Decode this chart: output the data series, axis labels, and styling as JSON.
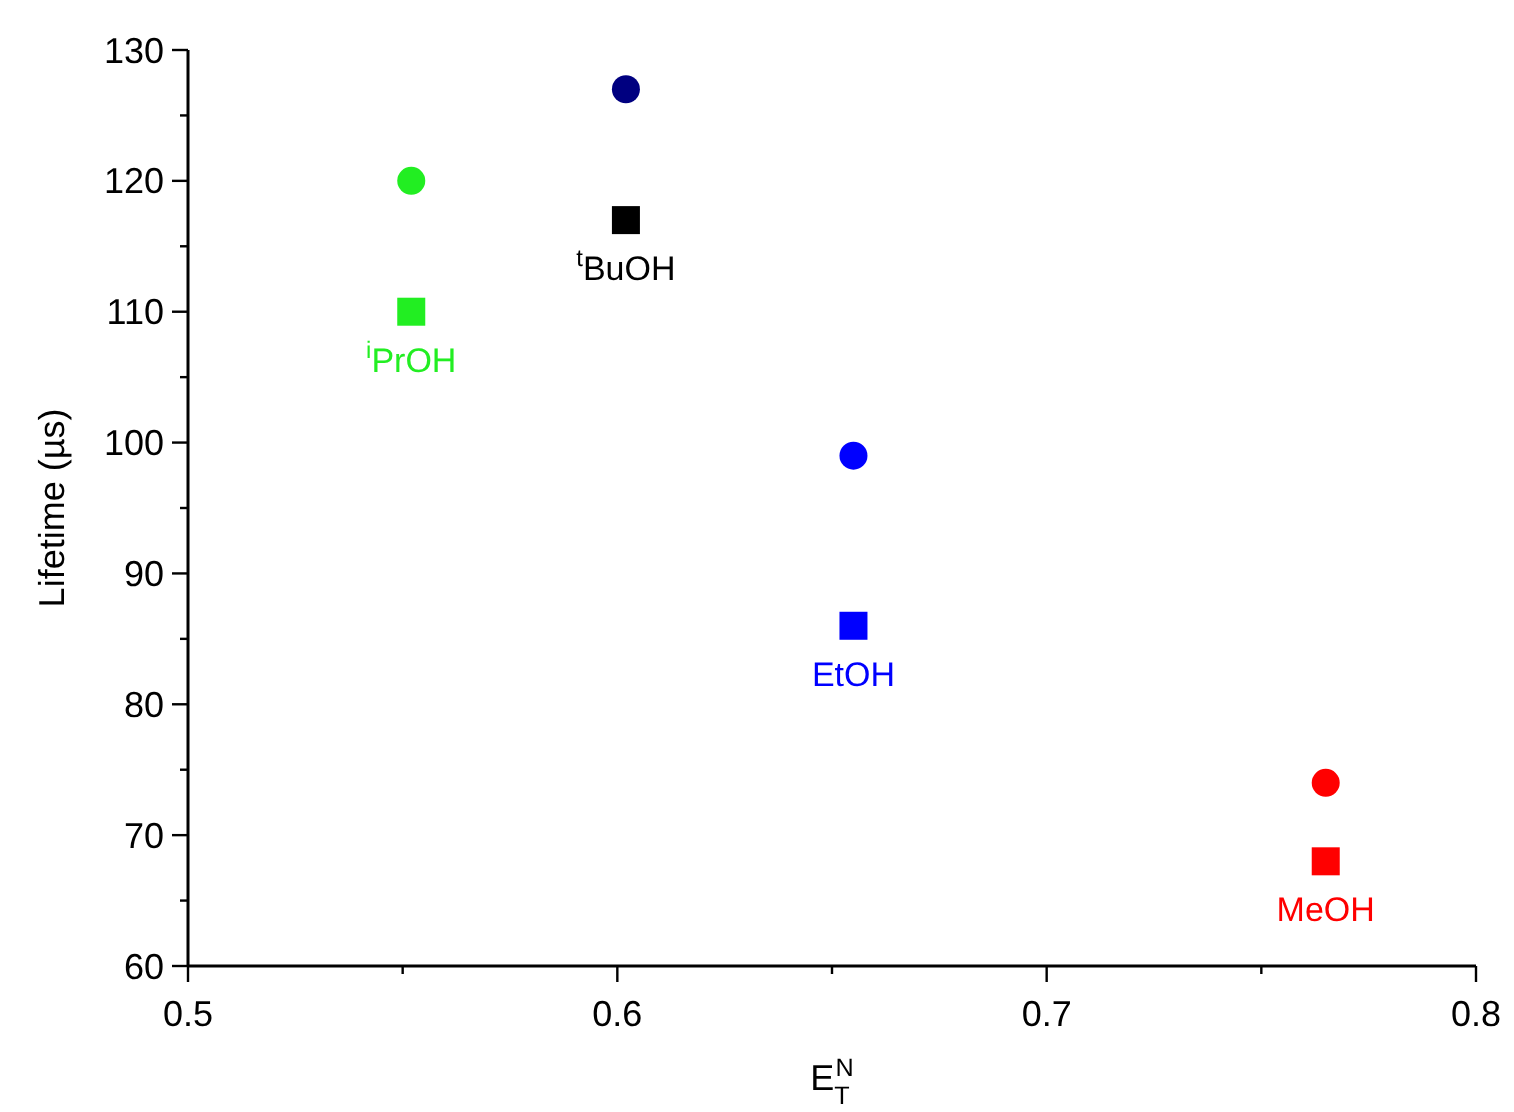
{
  "chart_data": {
    "type": "scatter",
    "xlabel": "E$_{T}$$^{N}$",
    "ylabel": "Lifetime (µs)",
    "x": [
      0.552,
      0.602,
      0.655,
      0.765
    ],
    "series": [
      {
        "marker": "circle",
        "colors": [
          "#22ee22",
          "#000080",
          "#0000ff",
          "#ff0000"
        ],
        "values": [
          120,
          127,
          99,
          74
        ]
      },
      {
        "marker": "square",
        "colors": [
          "#22ee22",
          "#000000",
          "#0000ff",
          "#ff0000"
        ],
        "values": [
          110,
          117,
          86,
          68
        ]
      }
    ],
    "annotations": [
      {
        "text": "$^{i}$PrOH",
        "x": 0.552,
        "y": 110
      },
      {
        "text": "$^{t}$BuOH",
        "x": 0.602,
        "y": 117
      },
      {
        "text": "EtOH",
        "x": 0.655,
        "y": 86
      },
      {
        "text": "MeOH",
        "x": 0.765,
        "y": 68
      }
    ],
    "xlim": [
      0.5,
      0.8
    ],
    "xticks": [
      0.5,
      {
        "value": 0.55,
        "label": null
      },
      0.6,
      {
        "value": 0.65,
        "label": null
      },
      0.7,
      {
        "value": 0.75,
        "label": null
      },
      0.8
    ],
    "ylim": [
      60,
      130
    ],
    "yticks": [
      60,
      {
        "value": 65,
        "label": null
      },
      70,
      {
        "value": 75,
        "label": null
      },
      80,
      {
        "value": 85,
        "label": null
      },
      90,
      {
        "value": 95,
        "label": null
      },
      100,
      {
        "value": 105,
        "label": null
      },
      110,
      {
        "value": 115,
        "label": null
      },
      120,
      {
        "value": 125,
        "label": null
      },
      130
    ],
    "grid": false
  }
}
